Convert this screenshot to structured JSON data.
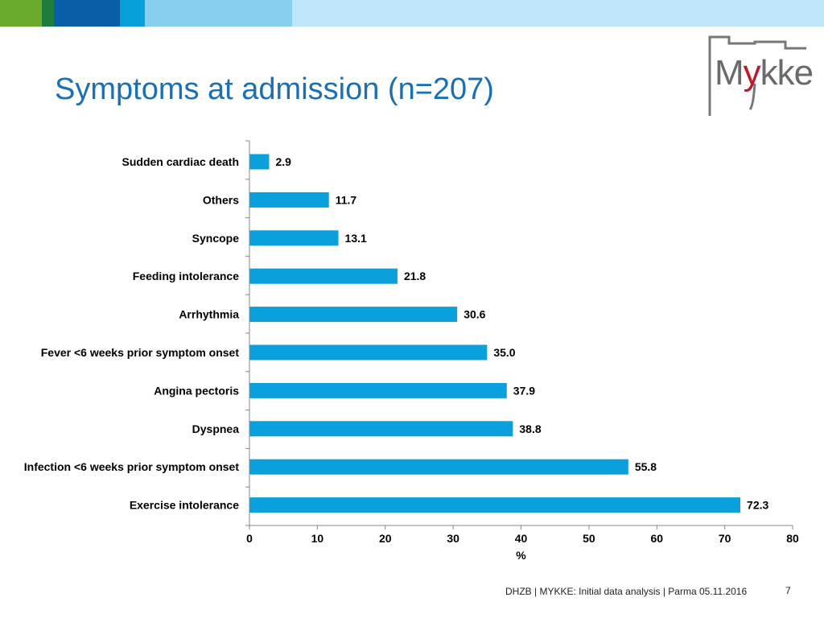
{
  "header": {
    "title": "Symptoms at admission (n=207)"
  },
  "logo": {
    "text_prefix": "M",
    "text_accent": "y",
    "text_suffix": "kke",
    "accent_color": "#c0182a"
  },
  "footer": {
    "text": "DHZB | MYKKE: Initial data analysis | Parma 05.11.2016",
    "page_number": "7"
  },
  "colors": {
    "title": "#1a6fb5",
    "bar": "#0aa0dc"
  },
  "chart_data": {
    "type": "bar",
    "orientation": "horizontal",
    "categories": [
      "Sudden cardiac death",
      "Others",
      "Syncope",
      "Feeding intolerance",
      "Arrhythmia",
      "Fever <6 weeks prior symptom onset",
      "Angina pectoris",
      "Dyspnea",
      "Infection  <6 weeks prior symptom onset",
      "Exercise intolerance"
    ],
    "values": [
      2.9,
      11.7,
      13.1,
      21.8,
      30.6,
      35.0,
      37.9,
      38.8,
      55.8,
      72.3
    ],
    "value_labels": [
      "2.9",
      "11.7",
      "13.1",
      "21.8",
      "30.6",
      "35.0",
      "37.9",
      "38.8",
      "55.8",
      "72.3"
    ],
    "xlabel": "%",
    "ylabel": "",
    "xlim": [
      0,
      80
    ],
    "xticks": [
      0,
      10,
      20,
      30,
      40,
      50,
      60,
      70,
      80
    ],
    "grid": false,
    "legend": "none"
  }
}
